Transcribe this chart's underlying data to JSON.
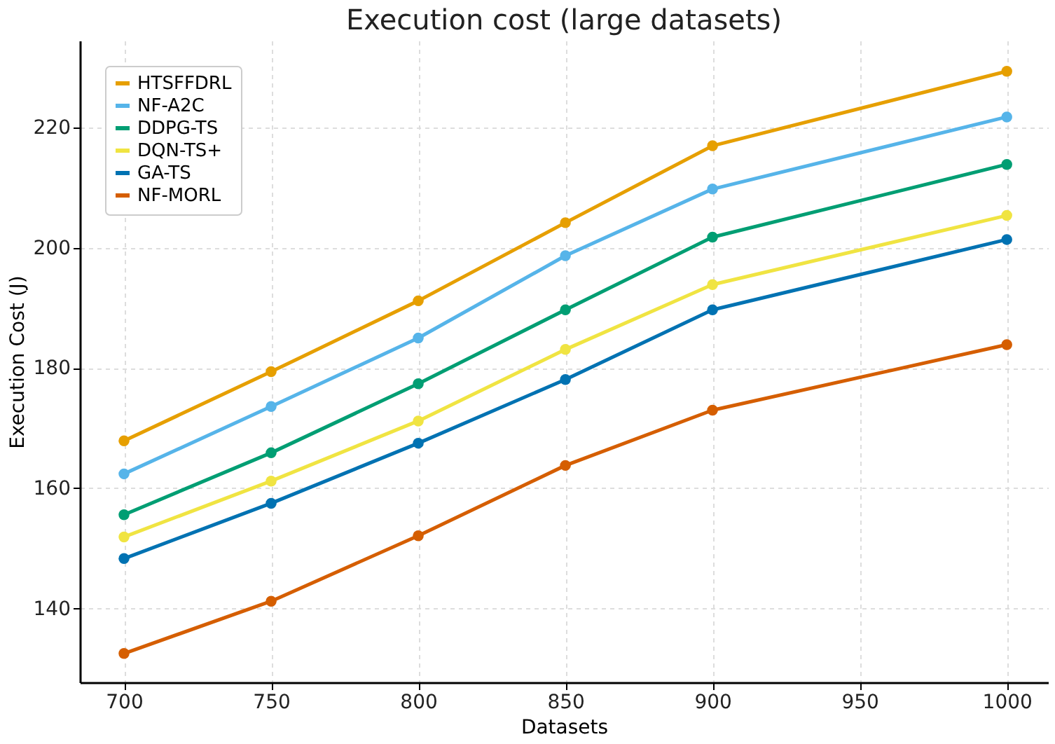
{
  "chart_data": {
    "type": "line",
    "title": "Execution cost (large datasets)",
    "xlabel": "Datasets",
    "ylabel": "Execution Cost (J)",
    "x": [
      700,
      750,
      800,
      850,
      900,
      1000
    ],
    "series": [
      {
        "name": "HTSFFDRL",
        "color": "#e69f00",
        "values": [
          167.9,
          179.4,
          191.2,
          204.2,
          217.0,
          229.4
        ]
      },
      {
        "name": "NF-A2C",
        "color": "#56b4e9",
        "values": [
          162.4,
          173.6,
          185.0,
          198.7,
          209.8,
          221.8
        ]
      },
      {
        "name": "DDPG-TS",
        "color": "#009e73",
        "values": [
          155.6,
          165.9,
          177.4,
          189.7,
          201.8,
          213.9
        ]
      },
      {
        "name": "DQN-TS+",
        "color": "#f0e442",
        "values": [
          151.9,
          161.2,
          171.2,
          183.1,
          193.9,
          205.4
        ]
      },
      {
        "name": "GA-TS",
        "color": "#0072b2",
        "values": [
          148.3,
          157.5,
          167.5,
          178.1,
          189.7,
          201.4
        ]
      },
      {
        "name": "NF-MORL",
        "color": "#d55e00",
        "values": [
          132.5,
          141.2,
          152.1,
          163.8,
          173.0,
          183.9
        ]
      }
    ],
    "xlim": [
      685,
      1014
    ],
    "xticks": [
      700,
      750,
      800,
      850,
      900,
      950,
      1000
    ],
    "ylim": [
      127.7,
      234.5
    ],
    "yticks": [
      140,
      160,
      180,
      200,
      220
    ],
    "grid": true,
    "legend": "top left",
    "marker": "circle",
    "line_style": "solid"
  }
}
